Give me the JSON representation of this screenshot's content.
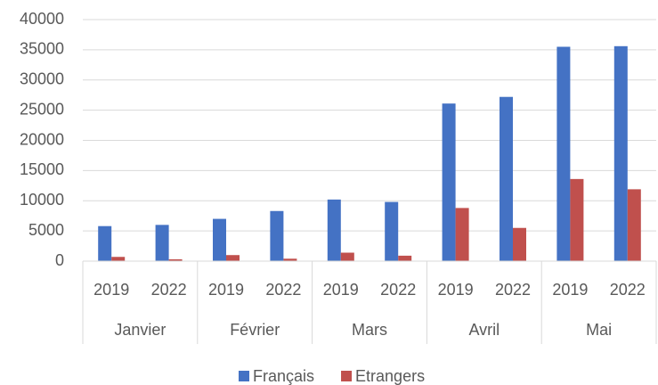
{
  "chart_data": {
    "type": "bar",
    "categories": [
      "2019",
      "2022",
      "2019",
      "2022",
      "2019",
      "2022",
      "2019",
      "2022",
      "2019",
      "2022"
    ],
    "groups": [
      "Janvier",
      "Février",
      "Mars",
      "Avril",
      "Mai"
    ],
    "series": [
      {
        "name": "Français",
        "color": "#4472c4",
        "values": [
          5800,
          6000,
          7000,
          8300,
          10200,
          9800,
          26100,
          27200,
          35500,
          35600
        ]
      },
      {
        "name": "Etrangers",
        "color": "#c0504d",
        "values": [
          700,
          300,
          1000,
          400,
          1400,
          900,
          8800,
          5500,
          13600,
          11900
        ]
      }
    ],
    "ylim": [
      0,
      40000
    ],
    "yticks": [
      0,
      5000,
      10000,
      15000,
      20000,
      25000,
      30000,
      35000,
      40000
    ],
    "grid": true,
    "legend": "bottom"
  }
}
